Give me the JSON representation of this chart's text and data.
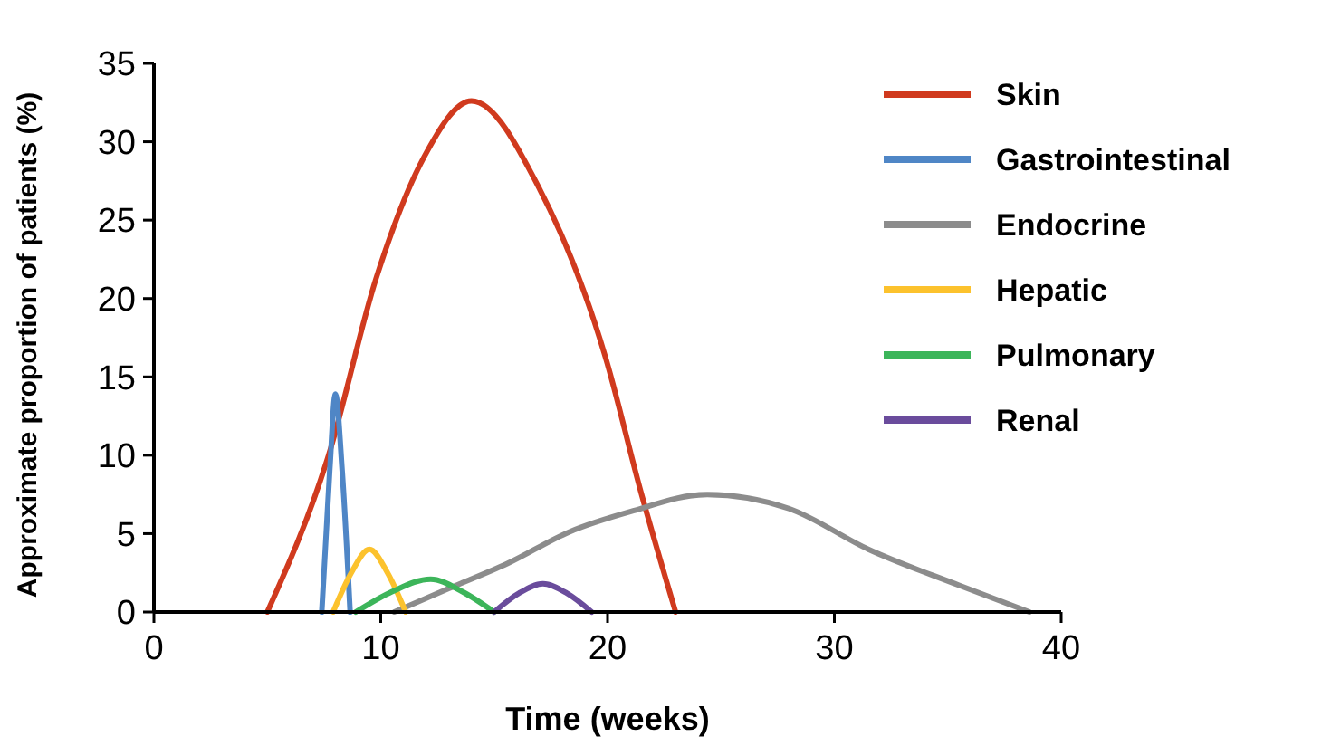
{
  "chart_data": {
    "type": "line",
    "xlabel": "Time (weeks)",
    "ylabel": "Approximate proportion of patients (%)",
    "xlim": [
      0,
      40
    ],
    "xticks": [
      0,
      10,
      20,
      30,
      40
    ],
    "ylim": [
      0,
      35
    ],
    "yticks": [
      0,
      5,
      10,
      15,
      20,
      25,
      30,
      35
    ],
    "grid": false,
    "legend": "right",
    "marker": "none",
    "line_style": "solid",
    "series": [
      {
        "name": "Skin",
        "color": "#d03a1e",
        "x": [
          5,
          7.7,
          9.8,
          11.9,
          14,
          17,
          19.9,
          21.5,
          23
        ],
        "values": [
          0,
          10,
          21.3,
          29,
          32.6,
          27,
          16.3,
          7.5,
          0
        ]
      },
      {
        "name": "Gastrointestinal",
        "color": "#4f86c6",
        "x": [
          7.4,
          7.75,
          8,
          8.3,
          8.65
        ],
        "values": [
          0,
          9,
          13.9,
          9,
          0
        ]
      },
      {
        "name": "Endocrine",
        "color": "#8c8c8c",
        "x": [
          10.6,
          13,
          15.6,
          18.3,
          21,
          24.4,
          28,
          31.5,
          35.5,
          38.6
        ],
        "values": [
          0,
          1.5,
          3.1,
          5.1,
          6.4,
          7.5,
          6.6,
          4,
          1.7,
          0
        ]
      },
      {
        "name": "Hepatic",
        "color": "#fcc22d",
        "x": [
          7.9,
          8.7,
          9.5,
          10.3,
          11.1
        ],
        "values": [
          0,
          2.5,
          4,
          2.5,
          0
        ]
      },
      {
        "name": "Pulmonary",
        "color": "#3cb55a",
        "x": [
          8.9,
          10.5,
          12.2,
          13.6,
          15
        ],
        "values": [
          0,
          1.3,
          2.1,
          1.3,
          0
        ]
      },
      {
        "name": "Renal",
        "color": "#6a4c9c",
        "x": [
          15,
          16.1,
          17.15,
          18.2,
          19.3
        ],
        "values": [
          0,
          1.2,
          1.8,
          1.2,
          0
        ]
      }
    ]
  }
}
